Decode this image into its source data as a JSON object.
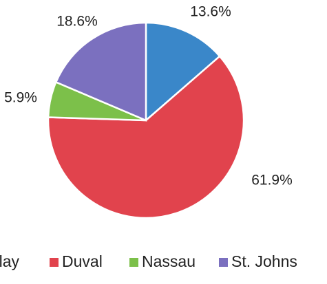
{
  "chart_data": {
    "type": "pie",
    "categories": [
      "Clay",
      "Duval",
      "Nassau",
      "St. Johns"
    ],
    "values": [
      13.6,
      61.9,
      5.9,
      18.6
    ],
    "value_labels": [
      "13.6%",
      "61.9%",
      "5.9%",
      "18.6%"
    ],
    "colors": [
      "#3a87c9",
      "#e1434d",
      "#7cc04a",
      "#7b70bf"
    ],
    "legend": "bottom"
  }
}
